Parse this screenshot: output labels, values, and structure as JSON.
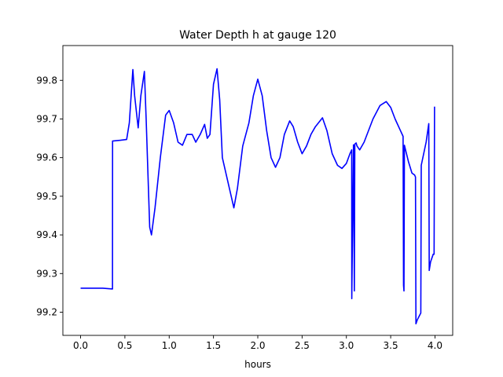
{
  "chart_data": {
    "type": "line",
    "title": "Water Depth h at gauge 120",
    "xlabel": "hours",
    "ylabel": "",
    "xlim": [
      -0.2,
      4.2
    ],
    "ylim": [
      99.14,
      99.89
    ],
    "xticks": [
      "0.0",
      "0.5",
      "1.0",
      "1.5",
      "2.0",
      "2.5",
      "3.0",
      "3.5",
      "4.0"
    ],
    "xtick_values": [
      0.0,
      0.5,
      1.0,
      1.5,
      2.0,
      2.5,
      3.0,
      3.5,
      4.0
    ],
    "yticks": [
      "99.2",
      "99.3",
      "99.4",
      "99.5",
      "99.6",
      "99.7",
      "99.8"
    ],
    "ytick_values": [
      99.2,
      99.3,
      99.4,
      99.5,
      99.6,
      99.7,
      99.8
    ],
    "grid": false,
    "line_color": "#0000ff",
    "series": [
      {
        "x": [
          0.0,
          0.25,
          0.36,
          0.361,
          0.45,
          0.52,
          0.55,
          0.59,
          0.61,
          0.65,
          0.68,
          0.72,
          0.74,
          0.78,
          0.8,
          0.84,
          0.9,
          0.96,
          1.0,
          1.05,
          1.1,
          1.15,
          1.2,
          1.26,
          1.3,
          1.35,
          1.4,
          1.43,
          1.46,
          1.5,
          1.54,
          1.57,
          1.6,
          1.68,
          1.73,
          1.77,
          1.83,
          1.9,
          1.95,
          2.0,
          2.05,
          2.1,
          2.15,
          2.2,
          2.25,
          2.3,
          2.36,
          2.4,
          2.45,
          2.5,
          2.55,
          2.6,
          2.65,
          2.73,
          2.78,
          2.84,
          2.9,
          2.95,
          3.0,
          3.04,
          3.06,
          3.061,
          3.08,
          3.09,
          3.095,
          3.11,
          3.12,
          3.15,
          3.2,
          3.25,
          3.3,
          3.38,
          3.45,
          3.5,
          3.55,
          3.6,
          3.64,
          3.645,
          3.65,
          3.655,
          3.7,
          3.74,
          3.77,
          3.78,
          3.785,
          3.8,
          3.84,
          3.845,
          3.9,
          3.93,
          3.935,
          3.95,
          3.98,
          3.99,
          3.995
        ],
        "values": [
          99.262,
          99.262,
          99.26,
          99.643,
          99.645,
          99.647,
          99.69,
          99.828,
          99.76,
          99.677,
          99.76,
          99.823,
          99.7,
          99.42,
          99.4,
          99.47,
          99.6,
          99.71,
          99.722,
          99.69,
          99.64,
          99.632,
          99.66,
          99.66,
          99.64,
          99.66,
          99.686,
          99.65,
          99.66,
          99.79,
          99.83,
          99.75,
          99.6,
          99.52,
          99.47,
          99.52,
          99.63,
          99.69,
          99.76,
          99.803,
          99.76,
          99.67,
          99.6,
          99.575,
          99.6,
          99.66,
          99.695,
          99.68,
          99.64,
          99.61,
          99.63,
          99.66,
          99.68,
          99.703,
          99.67,
          99.61,
          99.58,
          99.572,
          99.585,
          99.61,
          99.62,
          99.235,
          99.633,
          99.255,
          99.635,
          99.638,
          99.63,
          99.62,
          99.64,
          99.67,
          99.7,
          99.735,
          99.745,
          99.73,
          99.7,
          99.675,
          99.655,
          99.27,
          99.255,
          99.632,
          99.59,
          99.56,
          99.555,
          99.55,
          99.17,
          99.18,
          99.198,
          99.58,
          99.64,
          99.688,
          99.308,
          99.33,
          99.35,
          99.35,
          99.732
        ]
      }
    ]
  }
}
